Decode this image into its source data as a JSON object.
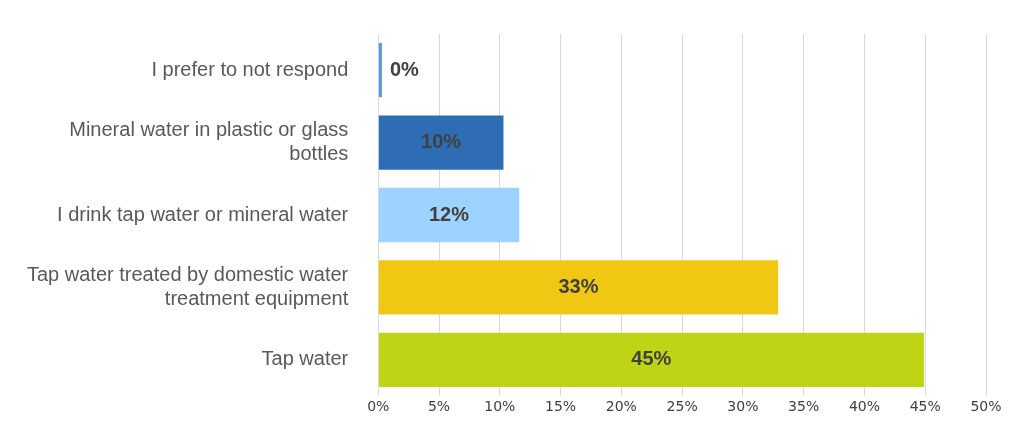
{
  "chart_data": {
    "type": "bar",
    "orientation": "horizontal",
    "categories": [
      "I prefer to not respond",
      "Mineral water in plastic or glass bottles",
      "I drink tap water or mineral water",
      "Tap water treated by domestic water treatment equipment",
      "Tap water"
    ],
    "values": [
      0.3,
      10.3,
      11.6,
      32.9,
      44.9
    ],
    "colors": [
      "#5b9bd5",
      "#2e6db4",
      "#9fd3ff",
      "#f0c814",
      "#c0d416"
    ],
    "value_labels": [
      "0%",
      "10%",
      "12%",
      "33%",
      "45%"
    ],
    "xlim": [
      0,
      50
    ],
    "xticks": [
      {
        "value": 0,
        "label": "0%"
      },
      {
        "value": 5,
        "label": "5%"
      },
      {
        "value": 10,
        "label": "10%"
      },
      {
        "value": 15,
        "label": "15%"
      },
      {
        "value": 20,
        "label": "20%"
      },
      {
        "value": 25,
        "label": "25%"
      },
      {
        "value": 30,
        "label": "30%"
      },
      {
        "value": 35,
        "label": "35%"
      },
      {
        "value": 40,
        "label": "40%"
      },
      {
        "value": 45,
        "label": "45%"
      },
      {
        "value": 50,
        "label": "50%"
      }
    ],
    "grid": "x",
    "legend": false
  }
}
